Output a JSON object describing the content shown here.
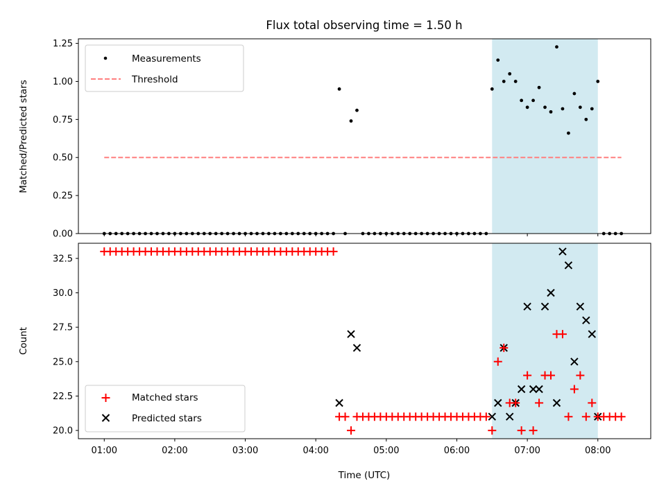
{
  "figure": {
    "title": "Flux total observing time = 1.50 h",
    "xlabel": "Time (UTC)",
    "colors": {
      "measurement": "#000000",
      "threshold": "#ff7f7f",
      "matched": "#ff0000",
      "predicted": "#000000",
      "highlight": "#add8e6"
    }
  },
  "chart_data": [
    {
      "type": "scatter",
      "ylabel": "Matched/Predicted stars",
      "xlabel": "",
      "xlim": [
        "00:38",
        "08:45"
      ],
      "ylim": [
        0,
        1.28
      ],
      "yticks": [
        0,
        0.25,
        0.5,
        0.75,
        1.0,
        1.25
      ],
      "ytick_labels": [
        "0.00",
        "0.25",
        "0.50",
        "0.75",
        "1.00",
        "1.25"
      ],
      "highlight_span": {
        "x": [
          "06:30",
          "08:00"
        ]
      },
      "legend": {
        "location": "upper-left",
        "entries": [
          "Measurements",
          "Threshold"
        ]
      },
      "threshold": {
        "name": "Threshold",
        "y": 0.5,
        "x_range": [
          "01:00",
          "08:20"
        ]
      },
      "series": [
        {
          "name": "Measurements",
          "zero_runs": [
            [
              "01:00",
              "04:15"
            ],
            [
              "04:40",
              "06:20"
            ],
            [
              "08:05",
              "08:20"
            ]
          ],
          "points": [
            {
              "x": "04:20",
              "y": 0.95
            },
            {
              "x": "04:25",
              "y": 0.0
            },
            {
              "x": "04:30",
              "y": 0.74
            },
            {
              "x": "04:35",
              "y": 0.81
            },
            {
              "x": "06:25",
              "y": 0.0
            },
            {
              "x": "06:30",
              "y": 0.95
            },
            {
              "x": "06:35",
              "y": 1.14
            },
            {
              "x": "06:40",
              "y": 1.0
            },
            {
              "x": "06:45",
              "y": 1.05
            },
            {
              "x": "06:50",
              "y": 1.0
            },
            {
              "x": "06:55",
              "y": 0.875
            },
            {
              "x": "07:00",
              "y": 0.83
            },
            {
              "x": "07:05",
              "y": 0.875
            },
            {
              "x": "07:10",
              "y": 0.96
            },
            {
              "x": "07:15",
              "y": 0.83
            },
            {
              "x": "07:20",
              "y": 0.8
            },
            {
              "x": "07:25",
              "y": 1.227
            },
            {
              "x": "07:30",
              "y": 0.82
            },
            {
              "x": "07:35",
              "y": 0.66
            },
            {
              "x": "07:40",
              "y": 0.92
            },
            {
              "x": "07:45",
              "y": 0.83
            },
            {
              "x": "07:50",
              "y": 0.75
            },
            {
              "x": "07:55",
              "y": 0.82
            },
            {
              "x": "08:00",
              "y": 1.0
            }
          ]
        }
      ]
    },
    {
      "type": "scatter",
      "ylabel": "Count",
      "xlabel": "Time (UTC)",
      "xlim": [
        "00:38",
        "08:45"
      ],
      "ylim": [
        19.4,
        33.6
      ],
      "yticks": [
        20.0,
        22.5,
        25.0,
        27.5,
        30.0,
        32.5
      ],
      "ytick_labels": [
        "20.0",
        "22.5",
        "25.0",
        "27.5",
        "30.0",
        "32.5"
      ],
      "xticks": [
        "01:00",
        "02:00",
        "03:00",
        "04:00",
        "05:00",
        "06:00",
        "07:00",
        "08:00"
      ],
      "highlight_span": {
        "x": [
          "06:30",
          "08:00"
        ]
      },
      "legend": {
        "location": "lower-left",
        "entries": [
          "Matched stars",
          "Predicted stars"
        ]
      },
      "series": [
        {
          "name": "Matched stars",
          "constant_runs": [
            {
              "range": [
                "01:00",
                "04:15"
              ],
              "y": 33
            },
            {
              "range": [
                "04:35",
                "06:20"
              ],
              "y": 21
            },
            {
              "range": [
                "08:05",
                "08:20"
              ],
              "y": 21
            }
          ],
          "points": [
            {
              "x": "04:20",
              "y": 21
            },
            {
              "x": "04:25",
              "y": 21
            },
            {
              "x": "04:30",
              "y": 20
            },
            {
              "x": "06:25",
              "y": 21
            },
            {
              "x": "06:30",
              "y": 20
            },
            {
              "x": "06:35",
              "y": 25
            },
            {
              "x": "06:40",
              "y": 26
            },
            {
              "x": "06:45",
              "y": 22
            },
            {
              "x": "06:50",
              "y": 22
            },
            {
              "x": "06:55",
              "y": 20
            },
            {
              "x": "07:00",
              "y": 24
            },
            {
              "x": "07:05",
              "y": 20
            },
            {
              "x": "07:10",
              "y": 22
            },
            {
              "x": "07:15",
              "y": 24
            },
            {
              "x": "07:20",
              "y": 24
            },
            {
              "x": "07:25",
              "y": 27
            },
            {
              "x": "07:30",
              "y": 27
            },
            {
              "x": "07:35",
              "y": 21
            },
            {
              "x": "07:40",
              "y": 23
            },
            {
              "x": "07:45",
              "y": 24
            },
            {
              "x": "07:50",
              "y": 21
            },
            {
              "x": "07:55",
              "y": 22
            },
            {
              "x": "08:00",
              "y": 21
            }
          ]
        },
        {
          "name": "Predicted stars",
          "points": [
            {
              "x": "04:20",
              "y": 22
            },
            {
              "x": "04:30",
              "y": 27
            },
            {
              "x": "04:35",
              "y": 26
            },
            {
              "x": "06:30",
              "y": 21
            },
            {
              "x": "06:35",
              "y": 22
            },
            {
              "x": "06:40",
              "y": 26
            },
            {
              "x": "06:45",
              "y": 21
            },
            {
              "x": "06:50",
              "y": 22
            },
            {
              "x": "06:55",
              "y": 23
            },
            {
              "x": "07:00",
              "y": 29
            },
            {
              "x": "07:05",
              "y": 23
            },
            {
              "x": "07:10",
              "y": 23
            },
            {
              "x": "07:15",
              "y": 29
            },
            {
              "x": "07:20",
              "y": 30
            },
            {
              "x": "07:25",
              "y": 22
            },
            {
              "x": "07:30",
              "y": 33
            },
            {
              "x": "07:35",
              "y": 32
            },
            {
              "x": "07:40",
              "y": 25
            },
            {
              "x": "07:45",
              "y": 29
            },
            {
              "x": "07:50",
              "y": 28
            },
            {
              "x": "07:55",
              "y": 27
            },
            {
              "x": "08:00",
              "y": 21
            }
          ]
        }
      ]
    }
  ]
}
